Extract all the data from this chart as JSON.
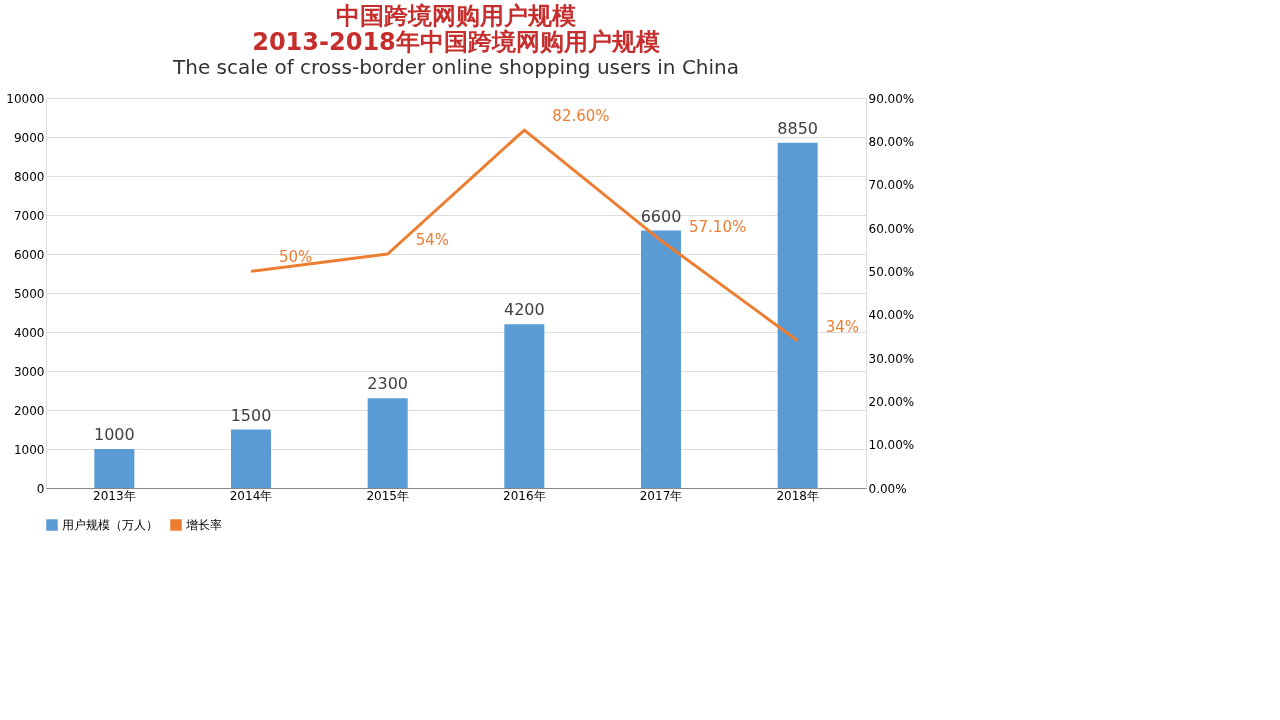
{
  "chart_data": {
    "type": "bar",
    "title": "中国跨境网购用户规模",
    "subtitle": "The scale of cross-border online shopping users in China",
    "annotations": [
      "2013-2018年中国跨境网购用户规模"
    ],
    "categories": [
      "2013年",
      "2014年",
      "2015年",
      "2016年",
      "2017年",
      "2018年"
    ],
    "series": [
      {
        "name": "用户规模（万人）",
        "color": "#5b9bd5",
        "values": [
          1000,
          1500,
          2300,
          4200,
          6600,
          8850
        ]
      },
      {
        "name": "增长率",
        "type": "line",
        "axis": "y2",
        "color": "#ed7d31",
        "values": [
          null,
          50,
          54,
          82.6,
          57.1,
          34
        ],
        "value_labels": [
          null,
          "50%",
          "54%",
          "82.60%",
          "57.10%",
          "34%"
        ]
      }
    ],
    "data_labels": true,
    "ylim": [
      0,
      10000
    ],
    "yticks": [
      0,
      1000,
      2000,
      3000,
      4000,
      5000,
      6000,
      7000,
      8000,
      9000,
      10000
    ],
    "y2lim": [
      0,
      90
    ],
    "y2ticks": [
      {
        "value": 0,
        "label": "0.00%"
      },
      {
        "value": 10,
        "label": "10.00%"
      },
      {
        "value": 20,
        "label": "20.00%"
      },
      {
        "value": 30,
        "label": "30.00%"
      },
      {
        "value": 40,
        "label": "40.00%"
      },
      {
        "value": 50,
        "label": "50.00%"
      },
      {
        "value": 60,
        "label": "60.00%"
      },
      {
        "value": 70,
        "label": "70.00%"
      },
      {
        "value": 80,
        "label": "80.00%"
      },
      {
        "value": 90,
        "label": "90.00%"
      }
    ],
    "grid": "y",
    "legend": "bottom",
    "marker": "none",
    "line_style": "solid"
  }
}
